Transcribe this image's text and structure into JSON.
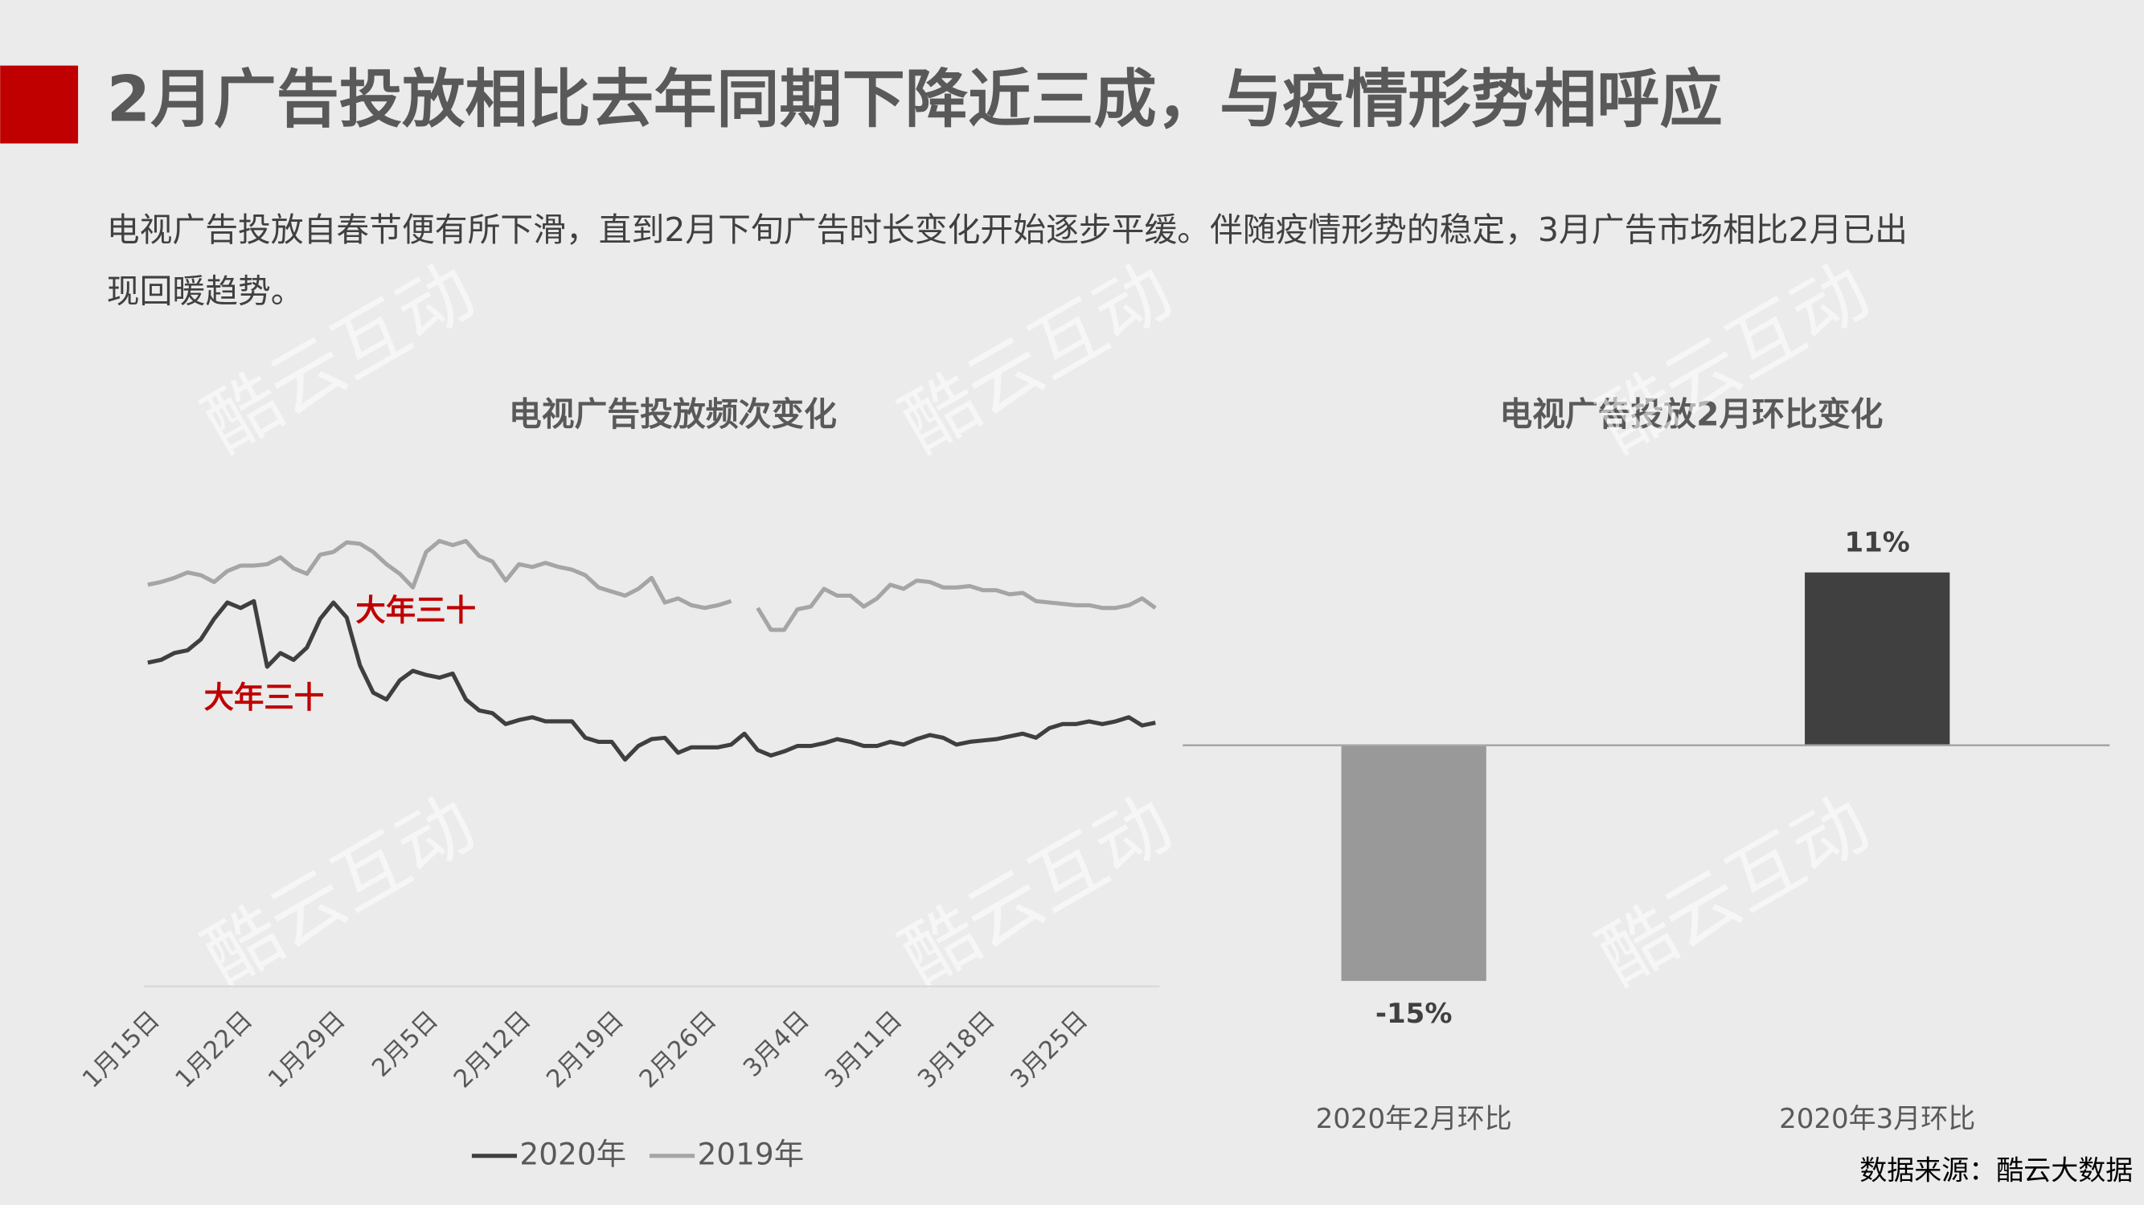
{
  "header": {
    "title": "2月广告投放相比去年同期下降近三成，与疫情形势相呼应",
    "subtitle_lines": [
      "电视广告投放自春节便有所下滑，直到2月下旬广告时长变化开始逐步平缓。伴随疫情形势的稳定，3月广告市场相比2月已出",
      "现回暖趋势。"
    ]
  },
  "watermark": "酷云互动",
  "chart_data": [
    {
      "type": "line",
      "title": "电视广告投放频次变化",
      "categories": [
        "1月15日",
        null,
        null,
        null,
        null,
        null,
        null,
        "1月22日",
        null,
        null,
        null,
        null,
        null,
        null,
        "1月29日",
        null,
        null,
        null,
        null,
        null,
        null,
        "2月5日",
        null,
        null,
        null,
        null,
        null,
        null,
        "2月12日",
        null,
        null,
        null,
        null,
        null,
        null,
        "2月19日",
        null,
        null,
        null,
        null,
        null,
        null,
        "2月26日",
        null,
        null,
        null,
        null,
        null,
        null,
        "3月4日",
        null,
        null,
        null,
        null,
        null,
        null,
        "3月11日",
        null,
        null,
        null,
        null,
        null,
        null,
        "3月18日",
        null,
        null,
        null,
        null,
        null,
        null,
        "3月25日",
        null,
        null,
        null,
        null,
        null,
        null
      ],
      "series": [
        {
          "name": "2020年",
          "color": "#3f3f3f",
          "values": [
            237,
            239,
            244,
            246,
            254,
            269,
            281,
            277,
            282,
            234,
            244,
            239,
            248,
            269,
            281,
            270,
            235,
            215,
            210,
            224,
            231,
            228,
            226,
            229,
            210,
            202,
            200,
            192,
            195,
            197,
            194,
            194,
            194,
            182,
            179,
            179,
            166,
            176,
            181,
            182,
            171,
            175,
            175,
            175,
            177,
            185,
            173,
            169,
            172,
            176,
            176,
            178,
            181,
            179,
            176,
            176,
            179,
            177,
            181,
            184,
            182,
            177,
            179,
            180,
            181,
            183,
            185,
            182,
            189,
            192,
            192,
            194,
            192,
            194,
            197,
            191,
            193
          ]
        },
        {
          "name": "2019年",
          "color": "#a5a5a5",
          "values": [
            294,
            296,
            299,
            303,
            301,
            296,
            304,
            308,
            308,
            309,
            314,
            306,
            302,
            316,
            318,
            325,
            324,
            318,
            309,
            302,
            292,
            318,
            326,
            323,
            326,
            315,
            311,
            297,
            309,
            307,
            310,
            307,
            305,
            301,
            292,
            289,
            286,
            291,
            299,
            281,
            284,
            279,
            277,
            279,
            282,
            null,
            277,
            261,
            261,
            276,
            278,
            291,
            286,
            286,
            278,
            284,
            294,
            291,
            297,
            296,
            292,
            292,
            293,
            290,
            290,
            287,
            288,
            282,
            281,
            280,
            279,
            279,
            277,
            277,
            279,
            284,
            277
          ]
        }
      ],
      "ylim": [
        0,
        350
      ],
      "annotations": [
        {
          "text": "大年三十",
          "color": "#c00000"
        },
        {
          "text": "大年三十",
          "color": "#c00000"
        }
      ]
    },
    {
      "type": "bar",
      "title": "电视广告投放2月环比变化",
      "categories": [
        "2020年2月环比",
        "2020年3月环比"
      ],
      "values": [
        -15,
        11
      ],
      "value_labels": [
        "-15%",
        "11%"
      ],
      "colors": [
        "#999999",
        "#404040"
      ]
    }
  ],
  "source": "数据来源：酷云大数据"
}
